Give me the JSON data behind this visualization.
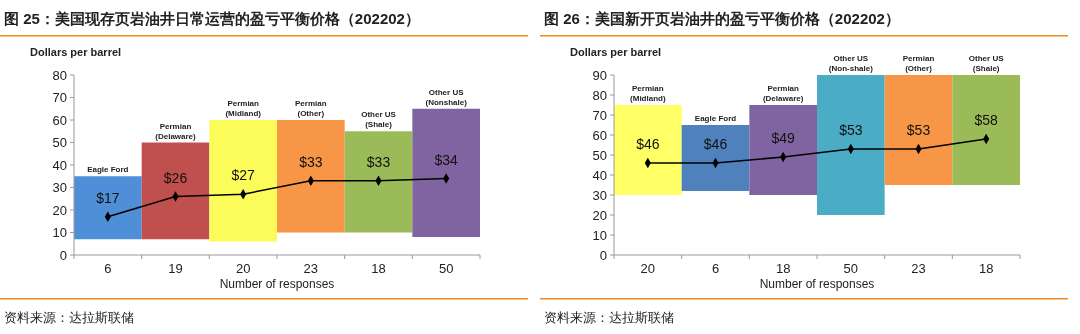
{
  "chart_data": [
    {
      "type": "bar",
      "title": "图 25：美国现存页岩油井日常运营的盈亏平衡价格（202202）",
      "xlabel": "Number of responses",
      "ylabel": "Dollars per barrel",
      "categories": [
        "6",
        "19",
        "20",
        "23",
        "18",
        "50"
      ],
      "ylim": [
        0,
        80
      ],
      "yticks": [
        0,
        10,
        20,
        30,
        40,
        50,
        60,
        70,
        80
      ],
      "marker": "diamond",
      "annotations": [
        "资料来源：达拉斯联储"
      ],
      "series": [
        {
          "base": [
            7,
            7,
            6,
            10,
            10,
            8
          ],
          "colors": [
            "#4f8fd8",
            "#c0504d",
            "#fbfb5a",
            "#f79646",
            "#9bbb59",
            "#8064a2"
          ],
          "values": [
            28,
            43,
            54,
            50,
            45,
            57
          ],
          "value_labels": [
            "Eagle Ford",
            "Permian (Delaware)",
            "Permian (Midland)",
            "Permian (Other)",
            "Other US (Shale)",
            "Other US (Nonshale)"
          ]
        },
        {
          "type": "line",
          "color": "#000000",
          "values": [
            17,
            26,
            27,
            33,
            33,
            34
          ],
          "value_labels": [
            "$17",
            "$26",
            "$27",
            "$33",
            "$33",
            "$34"
          ]
        }
      ]
    },
    {
      "type": "bar",
      "title": "图 26：美国新开页岩油井的盈亏平衡价格（202202）",
      "xlabel": "Number of responses",
      "ylabel": "Dollars per barrel",
      "categories": [
        "20",
        "6",
        "18",
        "50",
        "23",
        "18"
      ],
      "ylim": [
        0,
        90
      ],
      "yticks": [
        0,
        10,
        20,
        30,
        40,
        50,
        60,
        70,
        80,
        90
      ],
      "marker": "diamond",
      "annotations": [
        "资料来源：达拉斯联储"
      ],
      "series": [
        {
          "base": [
            30,
            32,
            30,
            20,
            35,
            35
          ],
          "colors": [
            "#ffff66",
            "#4f81bd",
            "#8064a2",
            "#4bacc6",
            "#f79646",
            "#9bbb59"
          ],
          "values": [
            45,
            33,
            45,
            70,
            55,
            55
          ],
          "value_labels": [
            "Permian (Midland)",
            "Eagle Ford",
            "Permian (Delaware)",
            "Other US (Non-shale)",
            "Permian (Other)",
            "Other US (Shale)"
          ]
        },
        {
          "type": "line",
          "color": "#000000",
          "values": [
            46,
            46,
            49,
            53,
            53,
            58
          ],
          "value_labels": [
            "$46",
            "$46",
            "$49",
            "$53",
            "$53",
            "$58"
          ]
        }
      ]
    }
  ]
}
